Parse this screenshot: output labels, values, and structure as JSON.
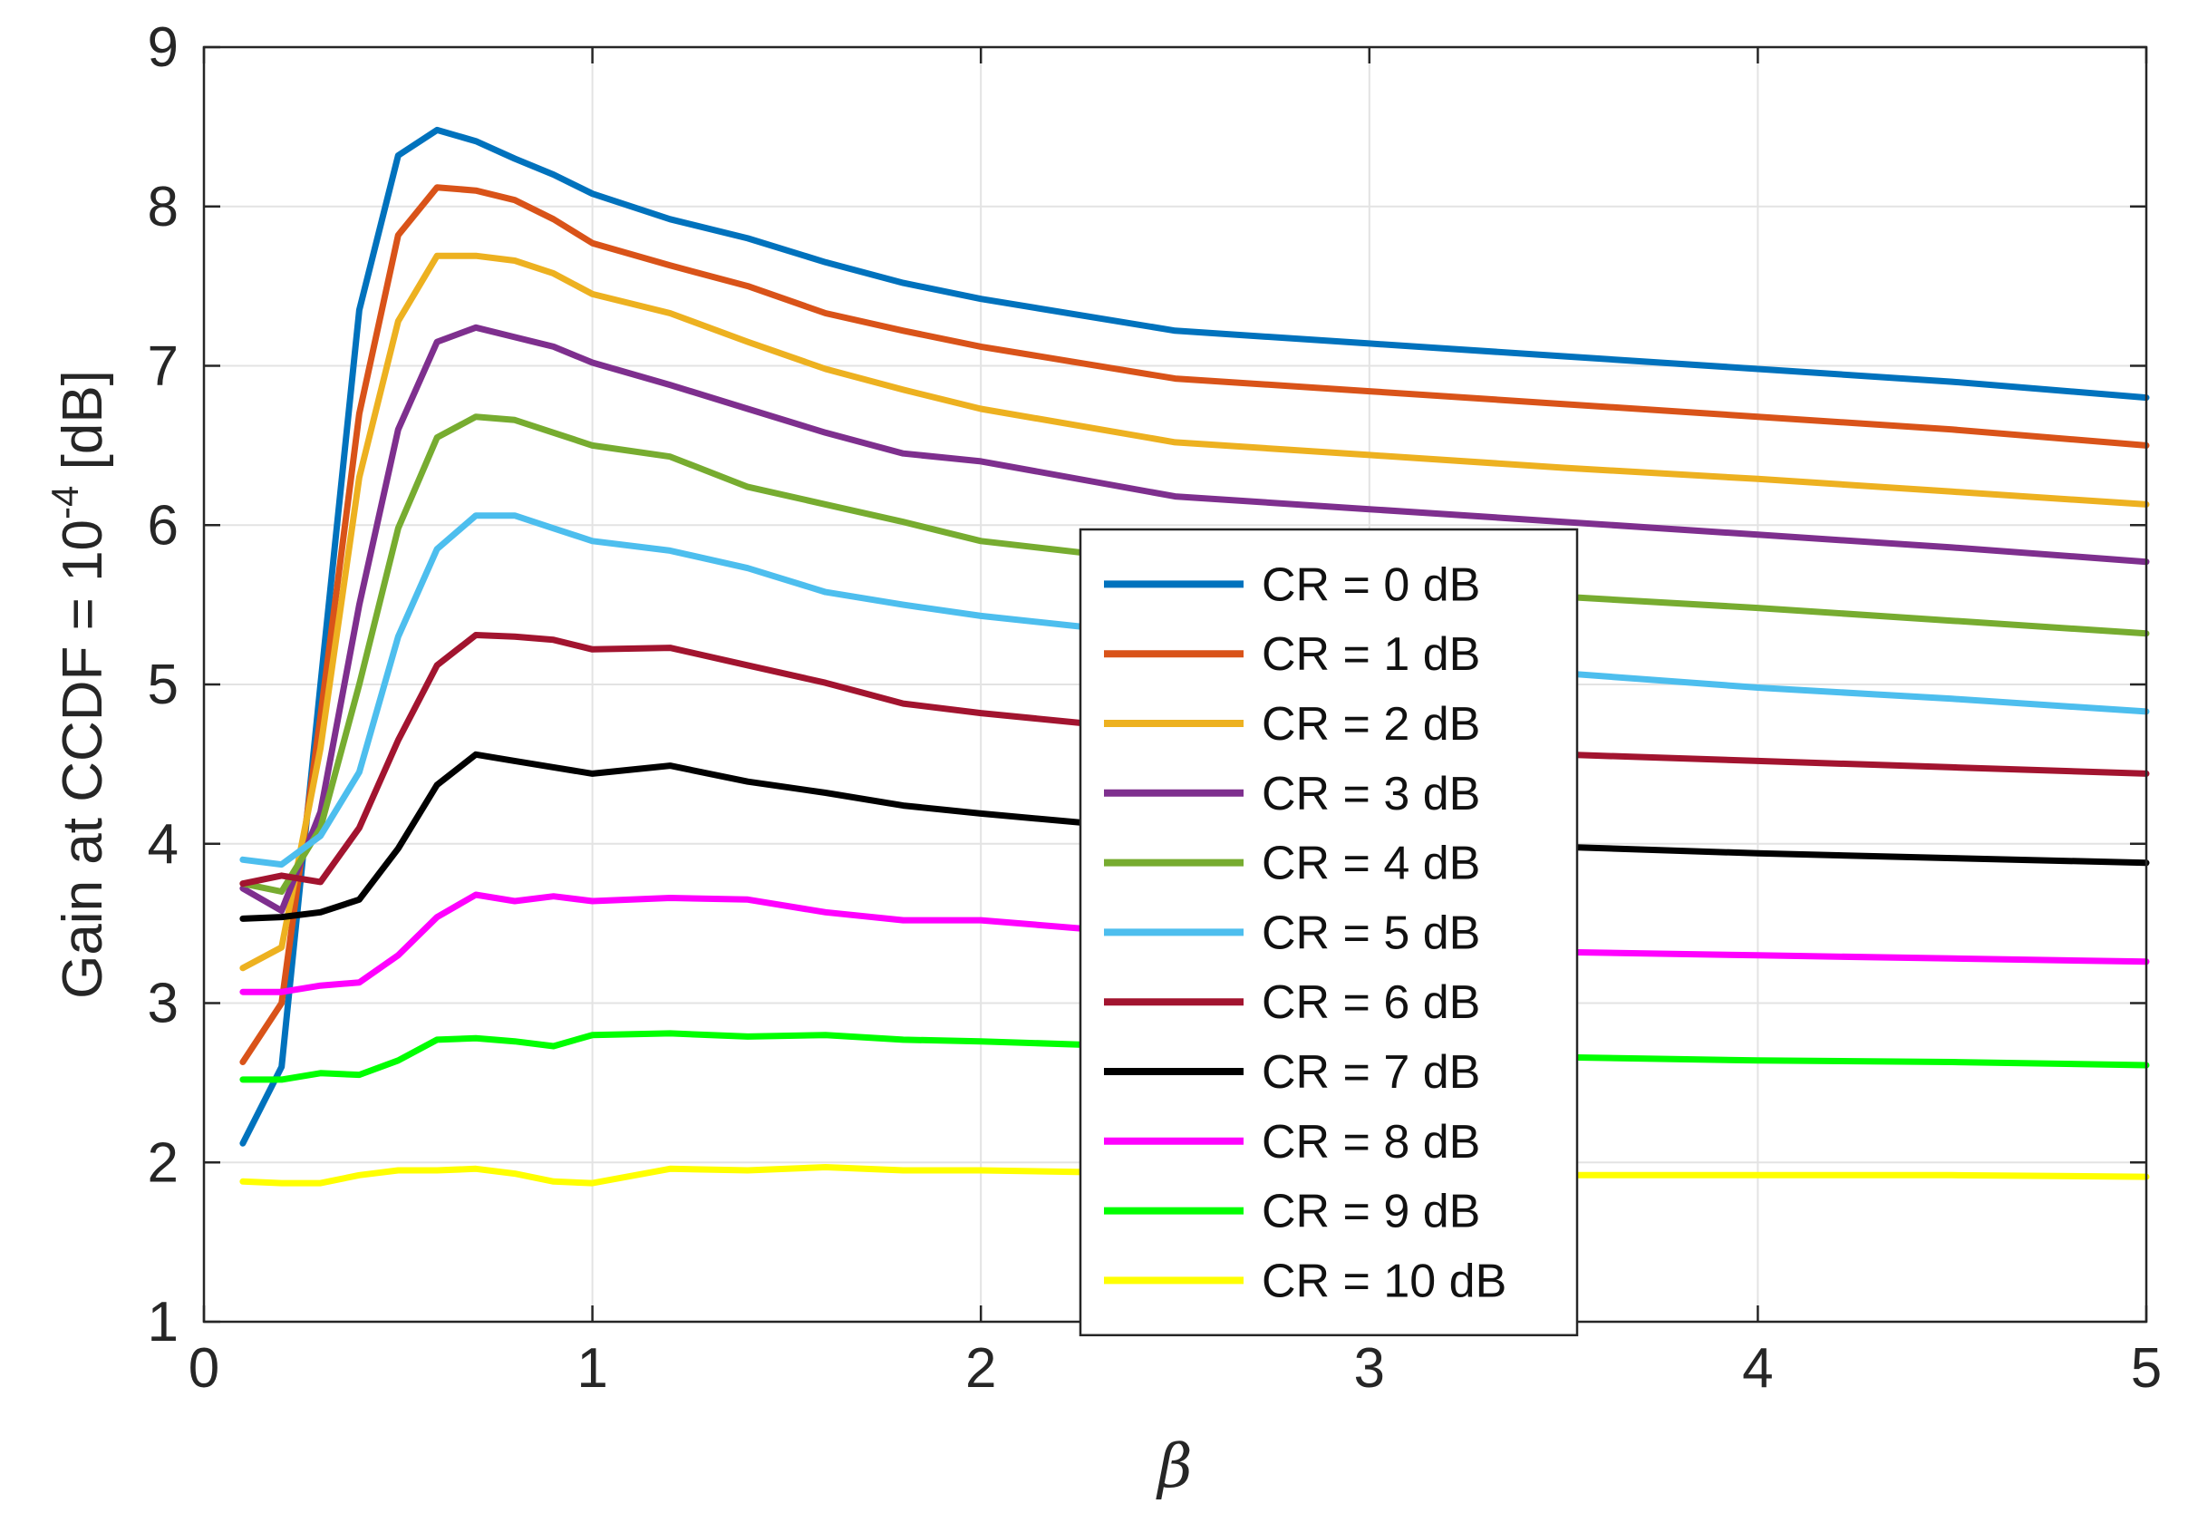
{
  "chart_data": {
    "type": "line",
    "title": "",
    "xlabel": "β",
    "ylabel": {
      "prefix": "Gain at CCDF = 10",
      "exponent": "-4",
      "suffix": " [dB]"
    },
    "xlim": [
      0,
      5
    ],
    "ylim": [
      1,
      9
    ],
    "xticks": [
      0,
      1,
      2,
      3,
      4,
      5
    ],
    "yticks": [
      1,
      2,
      3,
      4,
      5,
      6,
      7,
      8,
      9
    ],
    "grid": true,
    "legend_position": "center",
    "x": [
      0.1,
      0.2,
      0.3,
      0.4,
      0.5,
      0.6,
      0.7,
      0.8,
      0.9,
      1.0,
      1.2,
      1.4,
      1.6,
      1.8,
      2.0,
      2.5,
      3.0,
      3.5,
      4.0,
      4.5,
      5.0
    ],
    "series": [
      {
        "name": "CR = 0 dB",
        "color": "#0072BD",
        "values": [
          2.12,
          2.6,
          5.0,
          7.35,
          8.32,
          8.48,
          8.41,
          8.3,
          8.2,
          8.08,
          7.92,
          7.8,
          7.65,
          7.52,
          7.42,
          7.22,
          7.14,
          7.06,
          6.98,
          6.9,
          6.8
        ]
      },
      {
        "name": "CR = 1 dB",
        "color": "#D95319",
        "values": [
          2.63,
          3.0,
          4.8,
          6.7,
          7.82,
          8.12,
          8.1,
          8.04,
          7.92,
          7.77,
          7.63,
          7.5,
          7.33,
          7.22,
          7.12,
          6.92,
          6.84,
          6.76,
          6.68,
          6.6,
          6.5
        ]
      },
      {
        "name": "CR = 2 dB",
        "color": "#EDB120",
        "values": [
          3.22,
          3.35,
          4.6,
          6.3,
          7.28,
          7.69,
          7.69,
          7.66,
          7.58,
          7.45,
          7.33,
          7.15,
          6.98,
          6.85,
          6.73,
          6.52,
          6.44,
          6.36,
          6.29,
          6.21,
          6.13
        ]
      },
      {
        "name": "CR = 3 dB",
        "color": "#7E2F8E",
        "values": [
          3.72,
          3.58,
          4.2,
          5.5,
          6.6,
          7.15,
          7.24,
          7.18,
          7.12,
          7.02,
          6.88,
          6.73,
          6.58,
          6.45,
          6.4,
          6.18,
          6.1,
          6.02,
          5.94,
          5.86,
          5.77
        ]
      },
      {
        "name": "CR = 4 dB",
        "color": "#77AC30",
        "values": [
          3.75,
          3.7,
          4.1,
          5.0,
          5.98,
          6.55,
          6.68,
          6.66,
          6.58,
          6.5,
          6.43,
          6.24,
          6.13,
          6.02,
          5.9,
          5.76,
          5.63,
          5.55,
          5.48,
          5.4,
          5.32
        ]
      },
      {
        "name": "CR = 5 dB",
        "color": "#4DBEEE",
        "values": [
          3.9,
          3.87,
          4.05,
          4.45,
          5.3,
          5.85,
          6.06,
          6.06,
          5.98,
          5.9,
          5.84,
          5.73,
          5.58,
          5.5,
          5.43,
          5.3,
          5.18,
          5.07,
          4.98,
          4.91,
          4.83
        ]
      },
      {
        "name": "CR = 6 dB",
        "color": "#A2142F",
        "values": [
          3.75,
          3.8,
          3.76,
          4.1,
          4.65,
          5.12,
          5.31,
          5.3,
          5.28,
          5.22,
          5.23,
          5.12,
          5.01,
          4.88,
          4.82,
          4.7,
          4.63,
          4.56,
          4.52,
          4.48,
          4.44
        ]
      },
      {
        "name": "CR = 7 dB",
        "color": "#000000",
        "values": [
          3.53,
          3.54,
          3.57,
          3.65,
          3.97,
          4.37,
          4.56,
          4.52,
          4.48,
          4.44,
          4.49,
          4.39,
          4.32,
          4.24,
          4.19,
          4.08,
          4.02,
          3.98,
          3.94,
          3.91,
          3.88
        ]
      },
      {
        "name": "CR = 8 dB",
        "color": "#FF00FF",
        "values": [
          3.07,
          3.07,
          3.11,
          3.13,
          3.3,
          3.54,
          3.68,
          3.64,
          3.67,
          3.64,
          3.66,
          3.65,
          3.57,
          3.52,
          3.52,
          3.42,
          3.36,
          3.32,
          3.3,
          3.28,
          3.26
        ]
      },
      {
        "name": "CR = 9 dB",
        "color": "#00FF00",
        "values": [
          2.52,
          2.52,
          2.56,
          2.55,
          2.64,
          2.77,
          2.78,
          2.76,
          2.73,
          2.8,
          2.81,
          2.79,
          2.8,
          2.77,
          2.76,
          2.72,
          2.68,
          2.66,
          2.64,
          2.63,
          2.61
        ]
      },
      {
        "name": "CR = 10 dB",
        "color": "#FFFF00",
        "values": [
          1.88,
          1.87,
          1.87,
          1.92,
          1.95,
          1.95,
          1.96,
          1.93,
          1.88,
          1.87,
          1.96,
          1.95,
          1.97,
          1.95,
          1.95,
          1.93,
          1.93,
          1.92,
          1.92,
          1.92,
          1.91
        ]
      }
    ]
  }
}
